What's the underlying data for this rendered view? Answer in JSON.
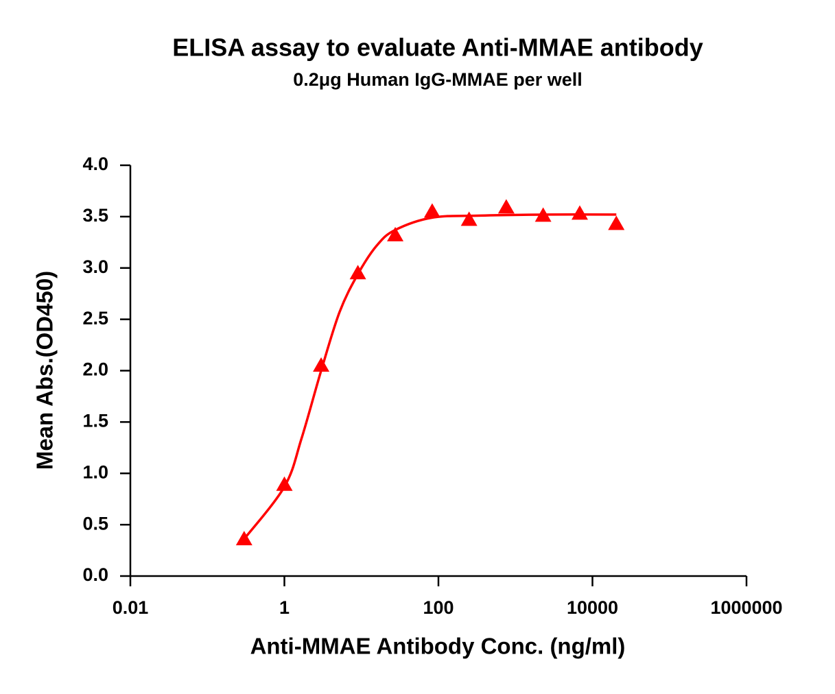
{
  "chart_data": {
    "type": "scatter",
    "title": "ELISA assay to evaluate Anti-MMAE antibody",
    "subtitle": "0.2μg Human IgG-MMAE per well",
    "x_label": "Anti-MMAE Antibody Conc. (ng/ml)",
    "y_label": "Mean Abs.(OD450)",
    "xscale": "log",
    "xlim": [
      0.01,
      1000000
    ],
    "xticks": [
      0.01,
      1,
      100,
      10000,
      1000000
    ],
    "ylim": [
      0,
      4
    ],
    "yticks": [
      {
        "value": 0,
        "label": "0.0"
      },
      0.5,
      {
        "value": 1,
        "label": "1.0"
      },
      1.5,
      {
        "value": 2,
        "label": "2.0"
      },
      2.5,
      {
        "value": 3,
        "label": "3.0"
      },
      3.5,
      {
        "value": 4,
        "label": "4.0"
      }
    ],
    "grid": false,
    "series": [
      {
        "color": "#ff0000",
        "marker": "triangle",
        "x": [
          0.3,
          1,
          3,
          9,
          27.5,
          83,
          250,
          760,
          2290,
          6840,
          20400
        ],
        "values": [
          0.36,
          0.89,
          2.05,
          2.95,
          3.32,
          3.55,
          3.47,
          3.59,
          3.51,
          3.53,
          3.43
        ]
      }
    ],
    "fit": {
      "color": "#ff0000",
      "x": [
        0.3,
        1,
        1.67,
        3,
        5.2,
        9,
        15.9,
        27.5,
        83,
        350,
        2700,
        20400
      ],
      "values": [
        0.36,
        0.87,
        1.34,
        2.0,
        2.57,
        2.94,
        3.22,
        3.37,
        3.49,
        3.51,
        3.52,
        3.52
      ]
    }
  }
}
